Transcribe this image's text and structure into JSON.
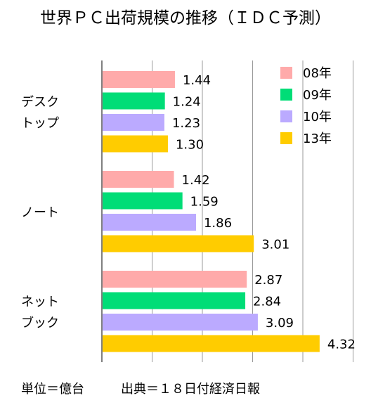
{
  "chart_data": {
    "type": "bar",
    "orientation": "horizontal",
    "title": "世界ＰＣ出荷規模の推移（ＩＤＣ予測）",
    "categories": [
      {
        "lines": [
          "デスク",
          "トップ"
        ]
      },
      {
        "lines": [
          "ノート"
        ]
      },
      {
        "lines": [
          "ネット",
          "ブック"
        ]
      }
    ],
    "series": [
      {
        "name": "08年",
        "color": "#ffaaaa",
        "values": [
          1.44,
          1.42,
          2.87
        ],
        "labels": [
          "1.44",
          "1.42",
          "2.87"
        ]
      },
      {
        "name": "09年",
        "color": "#00dd77",
        "values": [
          1.24,
          1.59,
          2.84
        ],
        "labels": [
          "1.24",
          "1.59",
          "2.84"
        ]
      },
      {
        "name": "10年",
        "color": "#bbaaff",
        "values": [
          1.23,
          1.86,
          3.09
        ],
        "labels": [
          "1.23",
          "1.86",
          "3.09"
        ]
      },
      {
        "name": "13年",
        "color": "#ffcc00",
        "values": [
          1.3,
          3.01,
          4.32
        ],
        "labels": [
          "1.30",
          "3.01",
          "4.32"
        ]
      }
    ],
    "xlim": [
      0,
      5
    ],
    "grid": true,
    "legend_position": "top-right"
  },
  "footer": {
    "unit": "単位＝億台",
    "source": "出典＝１８日付経済日報"
  }
}
